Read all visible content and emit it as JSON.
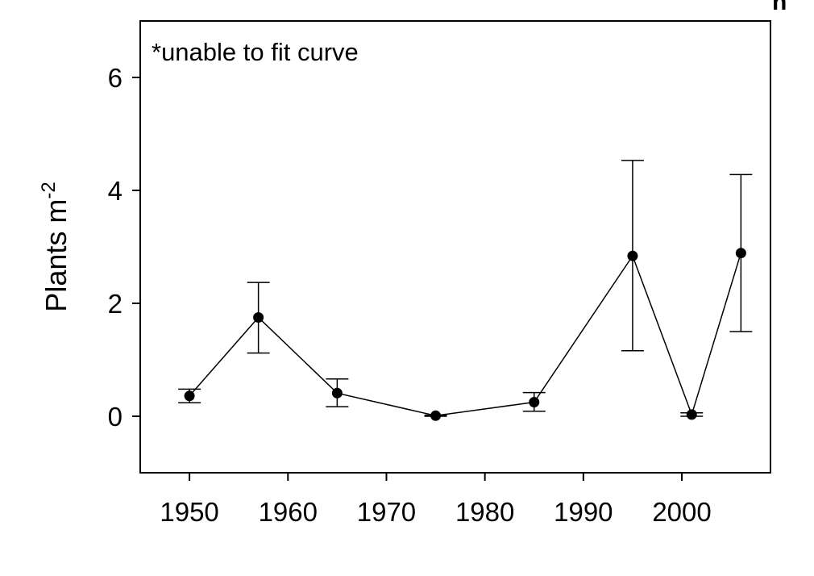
{
  "chart_data": {
    "type": "scatter",
    "connected": true,
    "panel_label": "h",
    "annotation": "*unable to fit curve",
    "title": "",
    "xlabel": "",
    "ylabel": "Plants m",
    "ylabel_superscript": "-2",
    "xlim": [
      1945,
      2009
    ],
    "ylim": [
      -1,
      7
    ],
    "xticks": [
      1950,
      1960,
      1970,
      1980,
      1990,
      2000
    ],
    "yticks": [
      0,
      2,
      4,
      6
    ],
    "grid": false,
    "legend": "none",
    "series": [
      {
        "x": [
          1950,
          1957,
          1965,
          1975,
          1985,
          1995,
          2001,
          2006
        ],
        "y": [
          0.36,
          1.75,
          0.41,
          0.01,
          0.25,
          2.84,
          0.03,
          2.89
        ],
        "err_low": [
          0.24,
          1.12,
          0.17,
          0.0,
          0.09,
          1.16,
          0.0,
          1.5
        ],
        "err_high": [
          0.48,
          2.37,
          0.66,
          0.02,
          0.42,
          4.53,
          0.06,
          4.28
        ]
      }
    ],
    "colors": {
      "marker": "#000000",
      "line": "#000000"
    }
  }
}
